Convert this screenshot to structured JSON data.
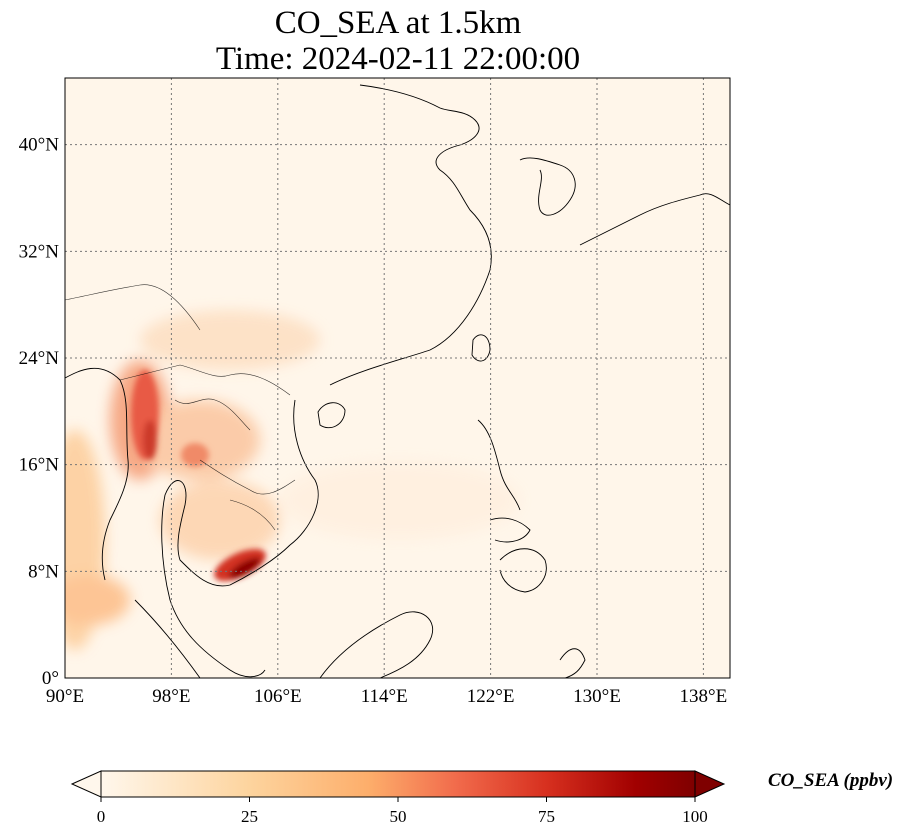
{
  "title_line1": "CO_SEA at 1.5km",
  "title_line2": "Time: 2024-02-11 22:00:00",
  "colorbar": {
    "label": "CO_SEA (ppbv)",
    "ticks": [
      "0",
      "25",
      "50",
      "75",
      "100"
    ],
    "colormap": "OrRd",
    "range": [
      0,
      100
    ],
    "extend": "both"
  },
  "map": {
    "lon_range": [
      90,
      140
    ],
    "lat_range": [
      0,
      45
    ],
    "lon_ticks": [
      90,
      98,
      106,
      114,
      122,
      130,
      138
    ],
    "lat_ticks": [
      0,
      8,
      16,
      24,
      32,
      40
    ],
    "lon_labels": [
      "90°E",
      "98°E",
      "106°E",
      "114°E",
      "122°E",
      "130°E",
      "138°E"
    ],
    "lat_labels": [
      "0°",
      "8°N",
      "16°N",
      "24°N",
      "32°N",
      "40°N"
    ],
    "gridlines": "dotted",
    "background_color": "#fff6ea"
  }
}
